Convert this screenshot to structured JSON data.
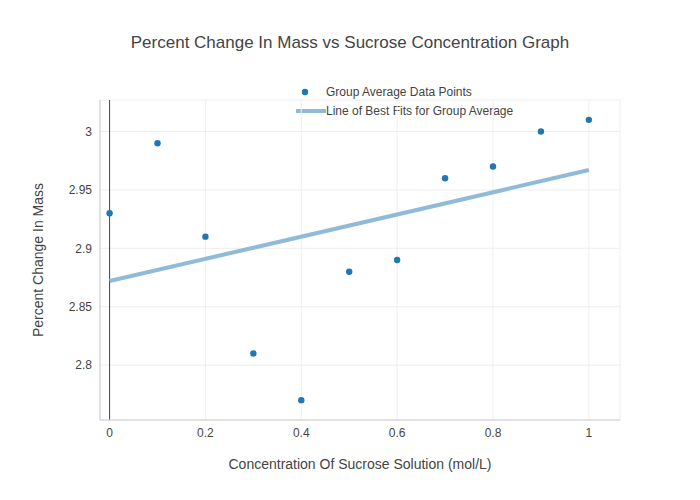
{
  "chart_data": {
    "type": "scatter",
    "title": "Percent Change In Mass vs Sucrose Concentration Graph",
    "x_label": "Concentration Of Sucrose Solution (mol/L)",
    "y_label": "Percent Change In Mass",
    "series": [
      {
        "name": "Group Average Data Points",
        "type": "scatter",
        "color": "#1f77b4",
        "marker": "circle",
        "x": [
          0,
          0.1,
          0.2,
          0.3,
          0.4,
          0.5,
          0.6,
          0.7,
          0.8,
          0.9,
          1
        ],
        "values": [
          2.93,
          2.99,
          2.91,
          2.81,
          2.77,
          2.88,
          2.89,
          2.96,
          2.97,
          3.0,
          3.01
        ]
      },
      {
        "name": "Line of Best Fits for Group Average",
        "type": "line",
        "color": "#8fbbd9",
        "line_style": "solid",
        "x": [
          0,
          1
        ],
        "values": [
          2.872,
          2.967
        ]
      }
    ],
    "xlim": [
      -0.02,
      1.065
    ],
    "ylim": [
      2.753,
      3.027
    ],
    "xticks": [
      0,
      0.2,
      0.4,
      0.6,
      0.8,
      1
    ],
    "yticks": [
      2.8,
      2.85,
      2.9,
      2.95,
      3
    ],
    "grid": true,
    "legend": "top"
  }
}
